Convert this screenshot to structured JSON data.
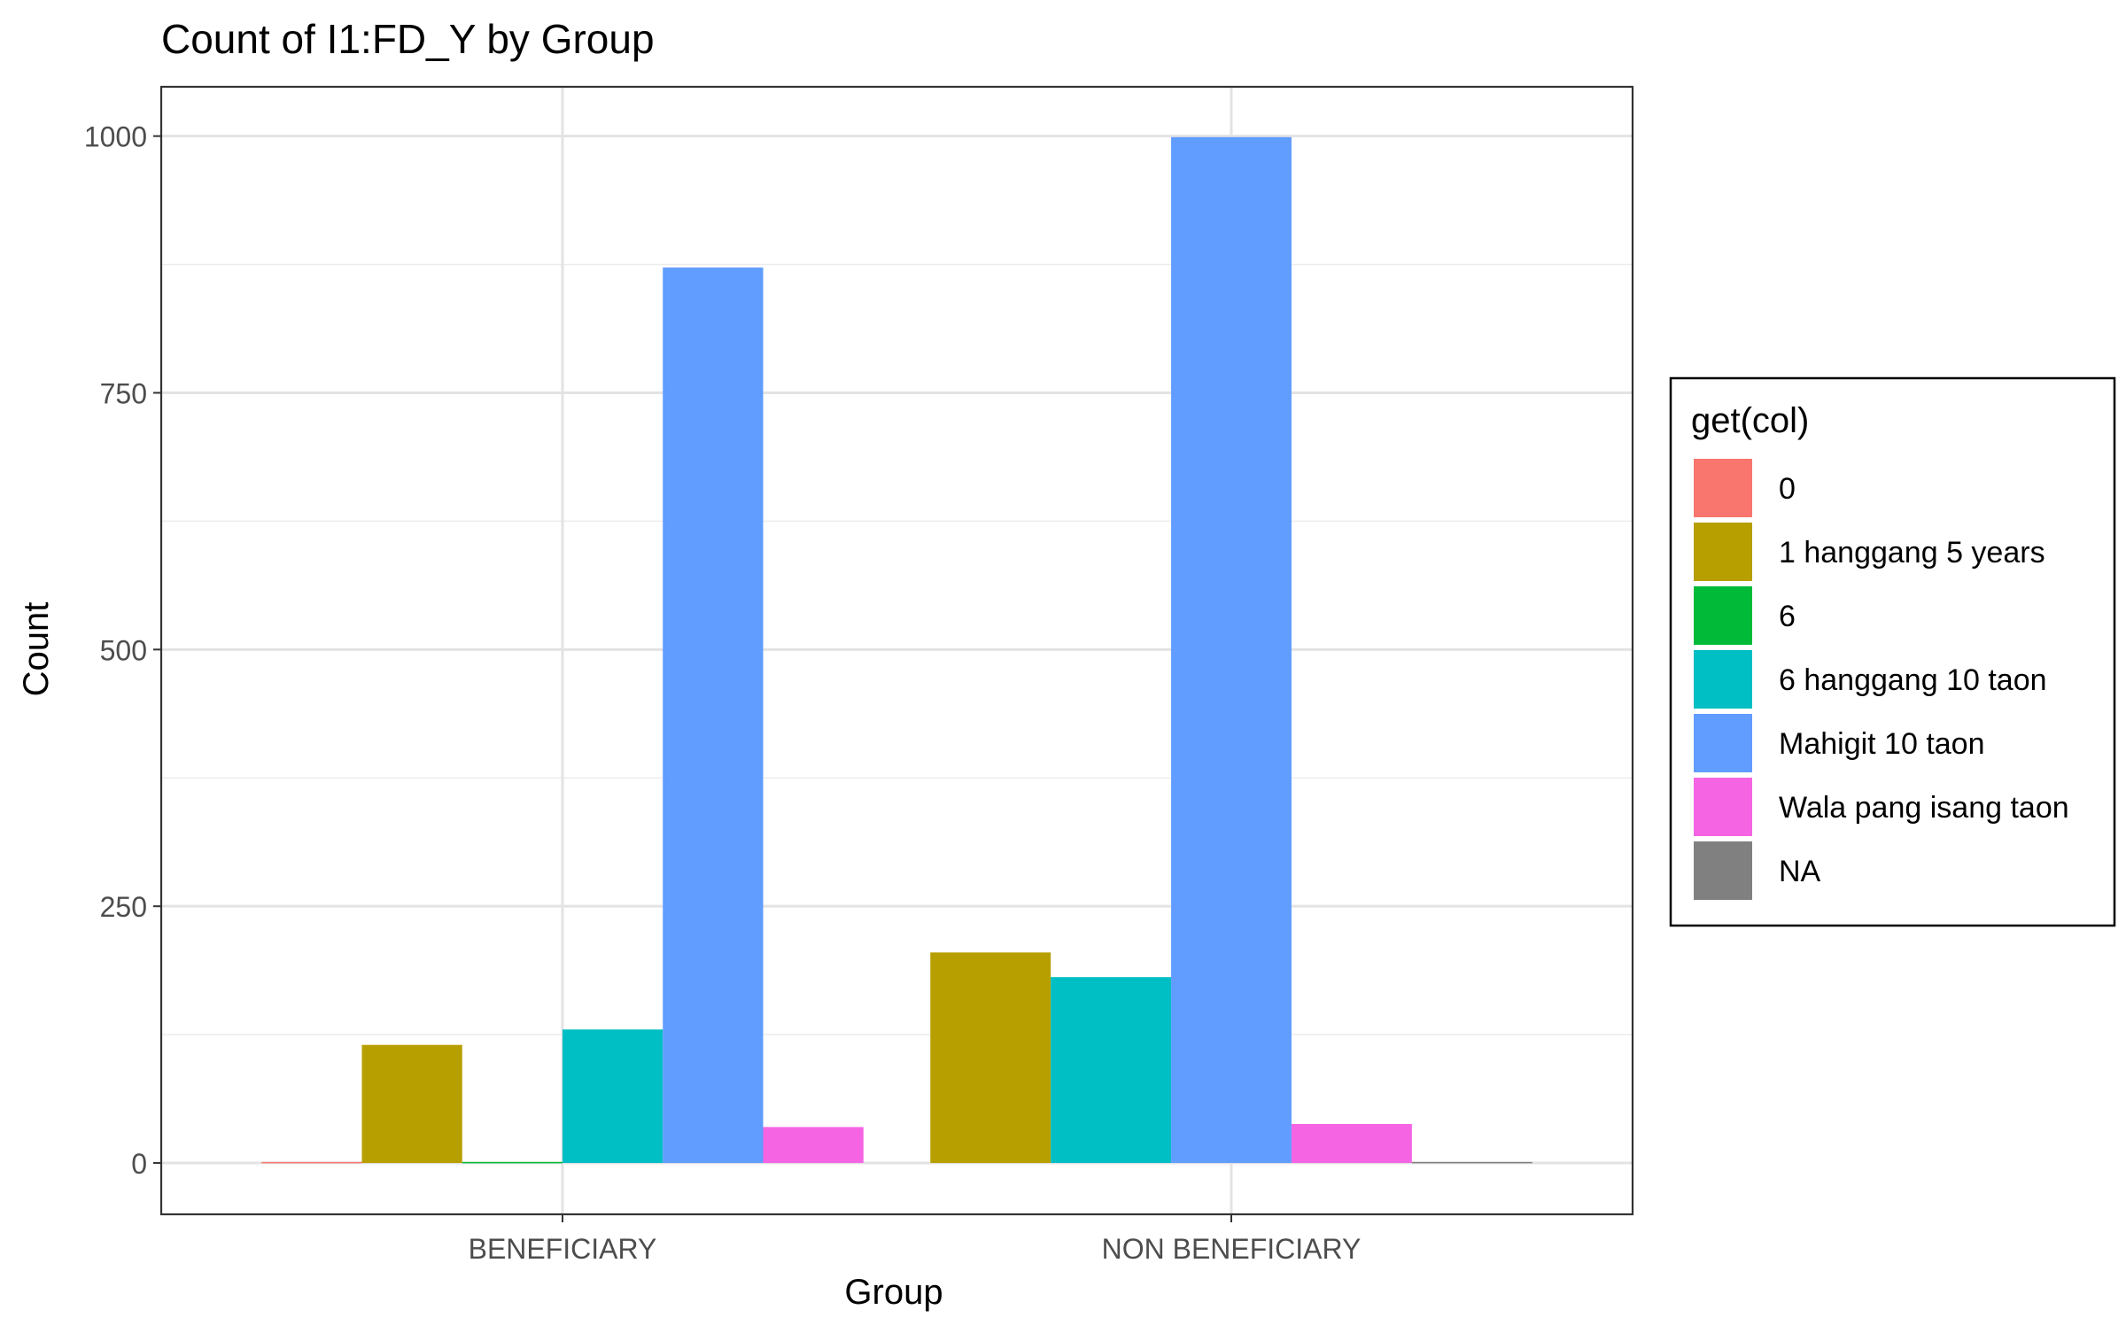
{
  "chart_data": {
    "type": "bar",
    "title": "Count of I1:FD_Y by Group",
    "xlabel": "Group",
    "ylabel": "Count",
    "ylim": [
      -50,
      1048
    ],
    "y_ticks": [
      0,
      250,
      500,
      750,
      1000
    ],
    "y_minor_ticks": [
      125,
      375,
      625,
      875
    ],
    "grid": true,
    "legend_position": "right",
    "legend_title": "get(col)",
    "categories": [
      "BENEFICIARY",
      "NON BENEFICIARY"
    ],
    "series": [
      {
        "name": "0",
        "color": "#F8766D",
        "values": [
          1,
          null
        ]
      },
      {
        "name": "1 hanggang 5 years",
        "color": "#B79F00",
        "values": [
          115,
          205
        ]
      },
      {
        "name": "6",
        "color": "#00BA38",
        "values": [
          1,
          null
        ]
      },
      {
        "name": "6 hanggang 10 taon",
        "color": "#00BFC4",
        "values": [
          130,
          181
        ]
      },
      {
        "name": "Mahigit 10 taon",
        "color": "#619CFF",
        "values": [
          872,
          999
        ]
      },
      {
        "name": "Wala pang isang taon",
        "color": "#F564E3",
        "values": [
          35,
          38
        ]
      },
      {
        "name": "NA",
        "color": "#808080",
        "values": [
          null,
          1
        ]
      }
    ]
  }
}
